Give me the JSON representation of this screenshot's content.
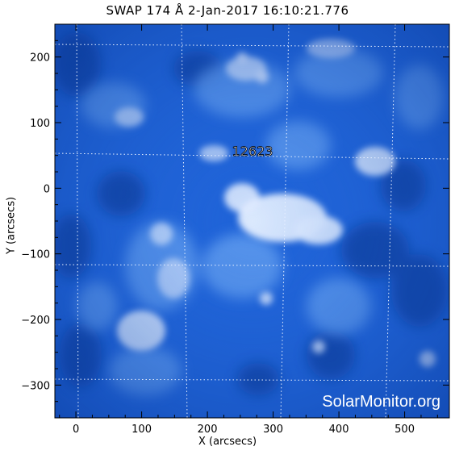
{
  "title": "SWAP 174 Å  2-Jan-2017 16:10:21.776",
  "xlabel": "X (arcsecs)",
  "ylabel": "Y (arcsecs)",
  "x_axis": {
    "range": [
      -32,
      568
    ],
    "ticks": [
      0,
      100,
      200,
      300,
      400,
      500
    ]
  },
  "y_axis": {
    "range": [
      -350,
      250
    ],
    "ticks": [
      200,
      100,
      0,
      -100,
      -200,
      -300
    ]
  },
  "grid": "dotted",
  "region_label": "12623",
  "watermark": "SolarMonitor.org",
  "colors": {
    "map_base": "#1f63d8",
    "map_dark": "#0b3c9c",
    "map_bright": "#e6f0ff",
    "grid": "#e8f0ff"
  }
}
